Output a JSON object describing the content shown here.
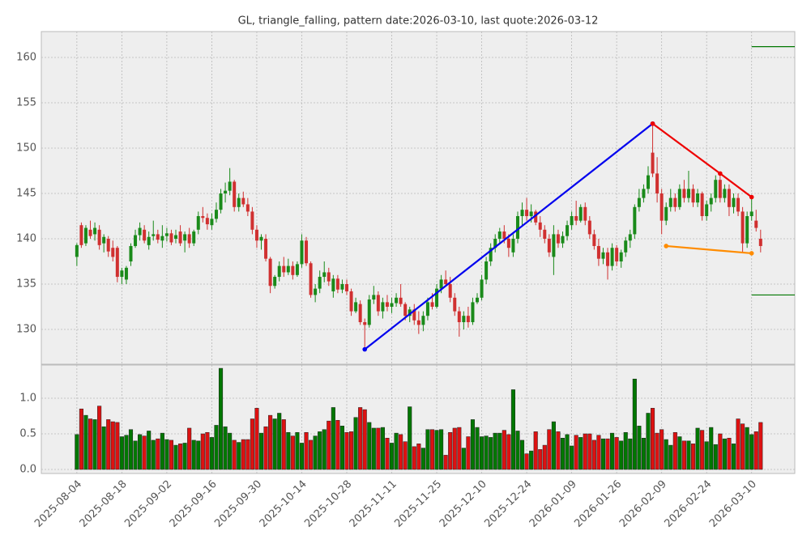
{
  "chart_data": {
    "type": "candlestick",
    "title": "GL, triangle_falling, pattern date:2026-03-10, last quote:2026-03-12",
    "categories": [
      "2025-08-04",
      null,
      null,
      null,
      null,
      null,
      null,
      null,
      null,
      null,
      "2025-08-18",
      null,
      null,
      null,
      null,
      null,
      null,
      null,
      null,
      null,
      "2025-09-02",
      null,
      null,
      null,
      null,
      null,
      null,
      null,
      null,
      null,
      "2025-09-16",
      null,
      null,
      null,
      null,
      null,
      null,
      null,
      null,
      null,
      "2025-09-30",
      null,
      null,
      null,
      null,
      null,
      null,
      null,
      null,
      null,
      "2025-10-14",
      null,
      null,
      null,
      null,
      null,
      null,
      null,
      null,
      null,
      "2025-10-28",
      null,
      null,
      null,
      null,
      null,
      null,
      null,
      null,
      null,
      "2025-11-11",
      null,
      null,
      null,
      null,
      null,
      null,
      null,
      null,
      null,
      "2025-11-25",
      null,
      null,
      null,
      null,
      null,
      null,
      null,
      null,
      null,
      "2025-12-10",
      null,
      null,
      null,
      null,
      null,
      null,
      null,
      null,
      null,
      "2025-12-24",
      null,
      null,
      null,
      null,
      null,
      null,
      null,
      null,
      null,
      "2026-01-09",
      null,
      null,
      null,
      null,
      null,
      null,
      null,
      null,
      null,
      "2026-01-26",
      null,
      null,
      null,
      null,
      null,
      null,
      null,
      null,
      null,
      "2026-02-09",
      null,
      null,
      null,
      null,
      null,
      null,
      null,
      null,
      null,
      "2026-02-24",
      null,
      null,
      null,
      null,
      null,
      null,
      null,
      null,
      null,
      "2026-03-10",
      null,
      null
    ],
    "open": [
      138.0,
      141.5,
      139.5,
      141.0,
      140.5,
      141.0,
      139.5,
      140.0,
      139.0,
      139.0,
      135.8,
      135.5,
      137.5,
      139.2,
      140.4,
      141.0,
      139.3,
      140.3,
      140.5,
      139.8,
      140.3,
      140.6,
      140.0,
      140.8,
      139.8,
      140.5,
      139.5,
      141.0,
      142.5,
      142.3,
      141.5,
      142.2,
      143.2,
      145.0,
      145.3,
      146.3,
      143.5,
      144.5,
      143.8,
      143.0,
      141.0,
      139.8,
      140.0,
      137.8,
      134.8,
      135.8,
      137.0,
      136.3,
      137.0,
      136.0,
      137.2,
      139.8,
      137.3,
      133.8,
      134.5,
      135.8,
      136.3,
      134.2,
      135.6,
      134.4,
      135.0,
      134.2,
      132.0,
      132.8,
      130.8,
      130.5,
      133.3,
      133.8,
      132.0,
      133.0,
      132.5,
      132.9,
      133.5,
      132.8,
      131.5,
      132.2,
      131.0,
      130.5,
      131.5,
      133.0,
      132.5,
      134.5,
      135.5,
      135.0,
      133.5,
      132.0,
      130.8,
      131.5,
      130.8,
      133.0,
      133.5,
      135.5,
      137.5,
      139.0,
      140.0,
      140.8,
      140.0,
      138.5,
      140.0,
      142.5,
      143.2,
      142.5,
      143.0,
      141.8,
      141.0,
      140.0,
      138.0,
      140.5,
      139.5,
      140.3,
      141.5,
      142.5,
      142.0,
      143.5,
      142.0,
      140.5,
      139.2,
      137.8,
      138.5,
      137.0,
      139.0,
      137.5,
      138.5,
      139.8,
      140.5,
      143.5,
      144.5,
      145.5,
      149.5,
      147.2,
      145.0,
      142.0,
      143.5,
      144.5,
      143.5,
      145.5,
      144.5,
      145.5,
      144.0,
      145.0,
      142.5,
      143.8,
      144.5,
      146.5,
      144.5,
      145.5,
      143.5,
      144.5,
      143.0,
      139.5,
      142.5,
      142.0,
      140.0
    ],
    "high": [
      139.5,
      141.8,
      141.5,
      142.0,
      141.8,
      141.5,
      140.5,
      140.3,
      139.8,
      139.2,
      136.8,
      137.0,
      139.5,
      141.0,
      141.8,
      141.5,
      140.8,
      142.0,
      141.0,
      141.5,
      141.2,
      141.0,
      141.0,
      141.5,
      140.8,
      141.2,
      141.0,
      143.0,
      143.5,
      142.8,
      142.8,
      144.0,
      145.5,
      146.2,
      147.8,
      146.5,
      145.0,
      145.2,
      144.5,
      143.5,
      141.5,
      140.5,
      140.5,
      138.0,
      136.0,
      137.5,
      138.0,
      137.8,
      137.5,
      137.5,
      140.5,
      140.2,
      137.5,
      135.0,
      136.5,
      137.5,
      136.8,
      136.0,
      136.0,
      135.5,
      135.5,
      134.5,
      133.5,
      133.2,
      131.2,
      133.8,
      134.8,
      134.2,
      133.5,
      133.8,
      133.5,
      134.0,
      135.0,
      133.0,
      132.5,
      132.8,
      132.0,
      132.0,
      133.5,
      134.0,
      135.0,
      136.0,
      136.5,
      135.8,
      134.0,
      132.5,
      132.0,
      132.5,
      133.5,
      134.0,
      136.0,
      138.0,
      139.5,
      140.5,
      141.2,
      141.5,
      140.5,
      140.5,
      143.0,
      144.0,
      144.5,
      143.8,
      143.2,
      142.5,
      141.5,
      140.5,
      141.5,
      141.0,
      140.8,
      142.0,
      143.0,
      144.2,
      143.8,
      144.0,
      142.5,
      141.0,
      140.0,
      139.0,
      139.0,
      139.5,
      139.3,
      138.8,
      140.2,
      141.0,
      143.8,
      145.5,
      146.0,
      148.0,
      152.7,
      149.0,
      145.5,
      144.0,
      145.5,
      145.0,
      146.0,
      146.5,
      147.5,
      146.0,
      145.5,
      145.2,
      144.2,
      145.0,
      147.0,
      147.2,
      146.0,
      146.0,
      145.0,
      145.0,
      143.5,
      143.0,
      144.5,
      143.2,
      141.0
    ],
    "low": [
      137.0,
      139.0,
      139.2,
      140.0,
      139.8,
      138.8,
      138.5,
      138.0,
      137.5,
      135.2,
      135.0,
      135.0,
      137.0,
      139.0,
      139.8,
      139.5,
      138.8,
      139.8,
      139.5,
      139.0,
      139.7,
      139.3,
      139.5,
      139.2,
      138.5,
      139.0,
      139.2,
      140.5,
      141.8,
      141.0,
      141.0,
      141.8,
      142.8,
      144.0,
      144.8,
      143.0,
      143.0,
      143.5,
      142.5,
      140.5,
      139.0,
      138.8,
      137.5,
      134.0,
      134.5,
      135.3,
      135.8,
      136.0,
      135.5,
      135.8,
      136.8,
      137.0,
      133.5,
      133.0,
      134.0,
      135.2,
      134.8,
      133.5,
      134.0,
      134.0,
      133.8,
      131.5,
      131.8,
      130.5,
      127.8,
      130.2,
      132.8,
      131.5,
      131.2,
      132.0,
      131.8,
      132.5,
      132.5,
      131.0,
      130.8,
      130.5,
      129.5,
      129.8,
      131.0,
      132.2,
      132.3,
      134.0,
      134.8,
      133.0,
      131.5,
      129.2,
      130.0,
      130.2,
      130.5,
      132.8,
      133.2,
      135.0,
      137.0,
      138.5,
      139.5,
      139.5,
      138.0,
      138.0,
      139.5,
      141.5,
      142.0,
      141.8,
      141.5,
      140.2,
      139.5,
      138.0,
      136.0,
      139.0,
      139.0,
      139.8,
      141.0,
      141.5,
      141.8,
      141.5,
      140.0,
      138.8,
      137.0,
      137.2,
      135.5,
      136.5,
      137.0,
      136.8,
      138.0,
      139.0,
      140.0,
      143.0,
      144.0,
      145.0,
      146.8,
      144.0,
      140.5,
      141.5,
      143.0,
      143.0,
      143.2,
      144.0,
      144.0,
      143.5,
      143.5,
      142.0,
      142.0,
      143.0,
      144.0,
      144.0,
      144.0,
      142.5,
      142.8,
      142.5,
      138.5,
      139.0,
      142.0,
      140.8,
      138.5
    ],
    "close": [
      139.3,
      139.3,
      141.2,
      140.3,
      141.2,
      139.3,
      140.2,
      138.6,
      138.0,
      135.8,
      136.5,
      136.8,
      139.2,
      140.4,
      141.2,
      139.8,
      140.2,
      140.5,
      139.9,
      140.3,
      140.6,
      139.6,
      140.4,
      139.5,
      140.5,
      139.5,
      140.8,
      142.5,
      142.3,
      141.6,
      142.2,
      143.2,
      145.0,
      145.3,
      146.3,
      143.5,
      144.5,
      143.8,
      143.0,
      141.0,
      139.8,
      140.2,
      137.8,
      134.8,
      135.8,
      137.0,
      136.3,
      137.0,
      136.0,
      137.2,
      139.8,
      137.3,
      133.8,
      134.5,
      135.8,
      136.3,
      135.3,
      135.6,
      134.4,
      135.0,
      134.2,
      132.0,
      133.0,
      130.8,
      130.5,
      133.3,
      133.8,
      132.0,
      133.0,
      132.5,
      132.9,
      133.5,
      132.8,
      131.5,
      132.2,
      131.0,
      130.5,
      131.5,
      133.0,
      132.5,
      134.5,
      135.5,
      135.0,
      133.5,
      132.0,
      130.8,
      131.5,
      130.8,
      133.0,
      133.5,
      135.5,
      137.5,
      139.0,
      140.0,
      140.8,
      140.0,
      139.0,
      140.0,
      142.5,
      143.2,
      142.5,
      143.0,
      141.8,
      141.0,
      140.0,
      138.5,
      140.5,
      139.5,
      140.3,
      141.5,
      142.5,
      142.0,
      143.5,
      142.0,
      140.5,
      139.2,
      137.8,
      138.5,
      137.0,
      139.0,
      137.5,
      138.5,
      139.8,
      140.5,
      143.5,
      144.5,
      145.5,
      147.0,
      147.2,
      145.0,
      142.0,
      143.5,
      144.5,
      143.5,
      145.5,
      144.5,
      145.5,
      144.0,
      145.0,
      142.5,
      143.8,
      144.5,
      146.5,
      144.5,
      145.5,
      143.5,
      144.5,
      143.0,
      139.5,
      142.5,
      143.0,
      141.2,
      139.2
    ],
    "volume": [
      0.49,
      0.85,
      0.76,
      0.71,
      0.7,
      0.89,
      0.6,
      0.7,
      0.67,
      0.66,
      0.46,
      0.48,
      0.56,
      0.4,
      0.49,
      0.47,
      0.54,
      0.41,
      0.43,
      0.51,
      0.42,
      0.41,
      0.34,
      0.36,
      0.37,
      0.58,
      0.41,
      0.4,
      0.5,
      0.52,
      0.45,
      0.62,
      1.42,
      0.6,
      0.51,
      0.41,
      0.38,
      0.42,
      0.42,
      0.71,
      0.86,
      0.51,
      0.6,
      0.76,
      0.71,
      0.79,
      0.7,
      0.52,
      0.47,
      0.52,
      0.37,
      0.52,
      0.41,
      0.47,
      0.53,
      0.56,
      0.68,
      0.87,
      0.69,
      0.61,
      0.52,
      0.53,
      0.73,
      0.87,
      0.84,
      0.66,
      0.58,
      0.58,
      0.59,
      0.44,
      0.37,
      0.51,
      0.49,
      0.39,
      0.88,
      0.32,
      0.36,
      0.3,
      0.56,
      0.56,
      0.55,
      0.56,
      0.2,
      0.52,
      0.58,
      0.59,
      0.3,
      0.46,
      0.7,
      0.59,
      0.46,
      0.47,
      0.45,
      0.51,
      0.51,
      0.55,
      0.49,
      1.12,
      0.54,
      0.41,
      0.22,
      0.26,
      0.53,
      0.28,
      0.34,
      0.56,
      0.67,
      0.53,
      0.44,
      0.49,
      0.33,
      0.48,
      0.45,
      0.5,
      0.5,
      0.41,
      0.48,
      0.43,
      0.43,
      0.51,
      0.45,
      0.4,
      0.52,
      0.43,
      1.27,
      0.61,
      0.44,
      0.79,
      0.86,
      0.51,
      0.56,
      0.42,
      0.34,
      0.52,
      0.46,
      0.4,
      0.4,
      0.36,
      0.58,
      0.55,
      0.39,
      0.59,
      0.35,
      0.5,
      0.43,
      0.44,
      0.36,
      0.71,
      0.64,
      0.59,
      0.49,
      0.53,
      0.66
    ],
    "up_color": "#1a8a1a",
    "down_color": "#d03030",
    "xlim": [
      -7.9,
      159.6
    ],
    "ylim": [
      126.16,
      162.86
    ],
    "yticks": [
      130,
      135,
      140,
      145,
      150,
      155,
      160
    ],
    "volume_ylim": [
      -0.057,
      1.466
    ],
    "volume_yticks": [
      {
        "value": 0,
        "label": "0.0"
      },
      0.5,
      {
        "value": 1,
        "label": "1.0"
      }
    ],
    "grid": true,
    "overlays": [
      {
        "color": "#0000ee",
        "x": [
          64,
          128
        ],
        "values": [
          127.8,
          152.7
        ]
      },
      {
        "color": "#ee0000",
        "x": [
          128,
          143,
          150
        ],
        "values": [
          152.7,
          147.2,
          144.6
        ]
      },
      {
        "color": "#ff8c00",
        "x": [
          131,
          150
        ],
        "values": [
          139.2,
          138.4
        ]
      }
    ],
    "levels": [
      {
        "value": 161.2,
        "color": "#007700",
        "start": 150
      },
      {
        "value": 133.8,
        "color": "#007700",
        "start": 150
      }
    ]
  }
}
